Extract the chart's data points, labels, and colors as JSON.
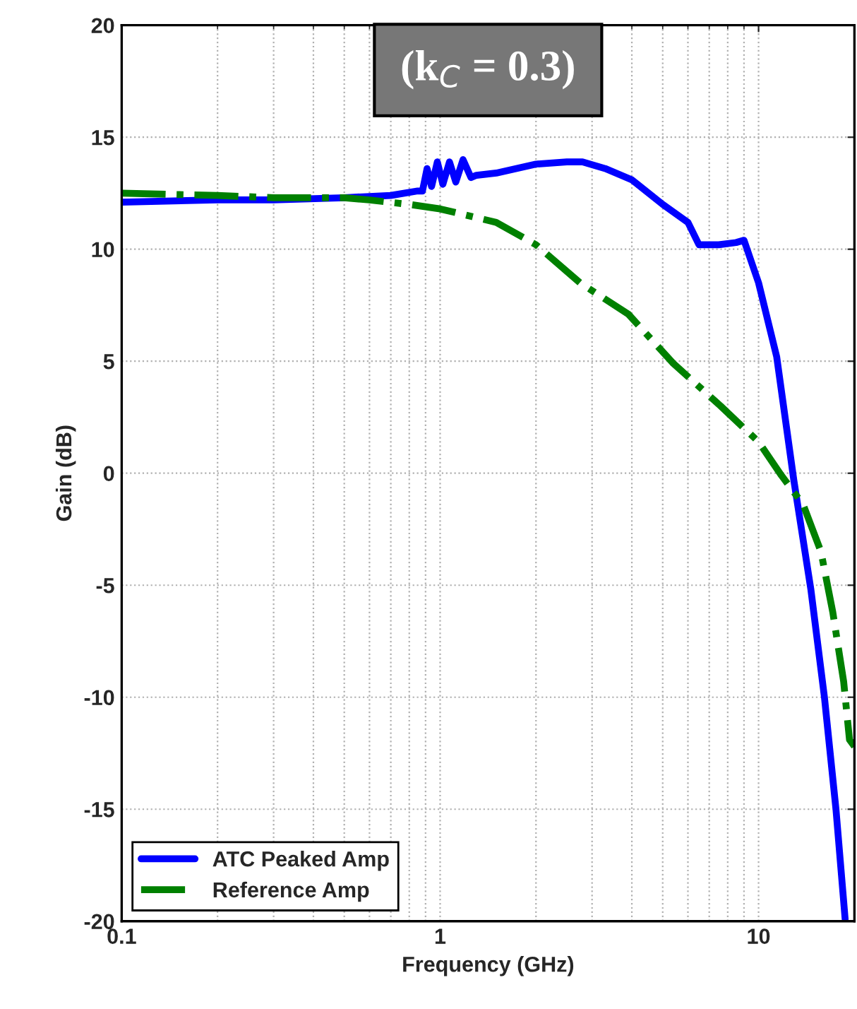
{
  "chart_data": {
    "type": "line",
    "xlabel": "Frequency (GHz)",
    "ylabel": "Gain (dB)",
    "annotations": [
      "(k$_{C}$ = 0.3)"
    ],
    "log": "x",
    "xlim": [
      0.1,
      20
    ],
    "xticks": [
      0.1,
      1,
      10
    ],
    "ylim": [
      -20,
      20
    ],
    "yticks": [
      -20,
      -15,
      -10,
      -5,
      0,
      5,
      10,
      15,
      20
    ],
    "grid": true,
    "legend": "bottom left",
    "series": [
      {
        "name": "ATC Peaked Amp",
        "color": "#0000ff",
        "line_style": "solid",
        "x": [
          0.1,
          0.2,
          0.3,
          0.5,
          0.7,
          0.85,
          0.88,
          0.91,
          0.94,
          0.98,
          1.02,
          1.07,
          1.12,
          1.18,
          1.25,
          1.3,
          1.5,
          2,
          2.5,
          2.8,
          3.3,
          4,
          5,
          6,
          6.5,
          7.5,
          8.5,
          9,
          10,
          11.4,
          12.9,
          14.6,
          16.1,
          17.5,
          18.7
        ],
        "values": [
          12.1,
          12.2,
          12.2,
          12.3,
          12.4,
          12.6,
          12.6,
          13.6,
          12.8,
          13.9,
          12.9,
          13.9,
          13.0,
          14.0,
          13.2,
          13.3,
          13.4,
          13.8,
          13.9,
          13.9,
          13.6,
          13.1,
          12.0,
          11.2,
          10.2,
          10.2,
          10.3,
          10.4,
          8.5,
          5.2,
          -0.3,
          -5.2,
          -10,
          -15,
          -19.9
        ]
      },
      {
        "name": "Reference Amp",
        "color": "#008000",
        "line_style": "dashdot",
        "x": [
          0.1,
          0.2,
          0.3,
          0.5,
          0.6,
          0.8,
          1,
          1.5,
          2,
          2.75,
          3.9,
          5.4,
          7.6,
          10,
          11.8,
          13.8,
          15.7,
          17.1,
          18.5,
          19.3,
          20
        ],
        "values": [
          12.5,
          12.4,
          12.3,
          12.3,
          12.2,
          12.0,
          11.8,
          11.2,
          10.2,
          8.5,
          7.1,
          4.9,
          3.0,
          1.4,
          -0.1,
          -1.4,
          -3.5,
          -6.2,
          -9.3,
          -11.9,
          -12.2
        ]
      }
    ]
  }
}
